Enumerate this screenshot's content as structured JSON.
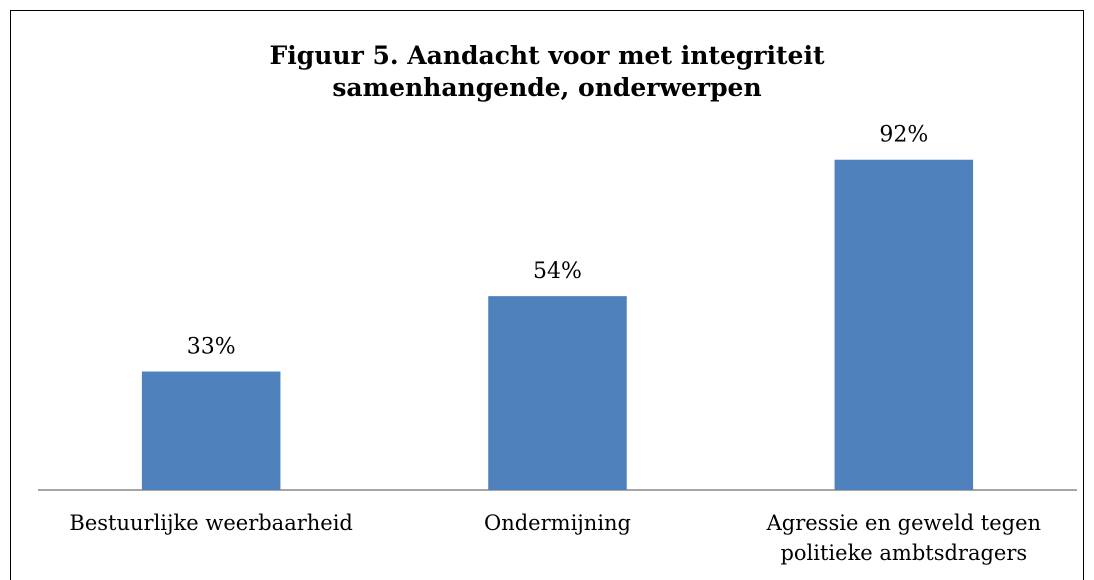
{
  "chart_data": {
    "type": "bar",
    "title": "Figuur 5. Aandacht voor met integriteit samenhangende, onderwerpen",
    "categories": [
      "Bestuurlijke weerbaarheid",
      "Ondermijning",
      "Agressie en geweld tegen politieke ambtsdragers"
    ],
    "values": [
      33,
      54,
      92
    ],
    "value_labels": [
      "33%",
      "54%",
      "92%"
    ],
    "color": "#4f81bd",
    "ylim": [
      0,
      100
    ]
  }
}
